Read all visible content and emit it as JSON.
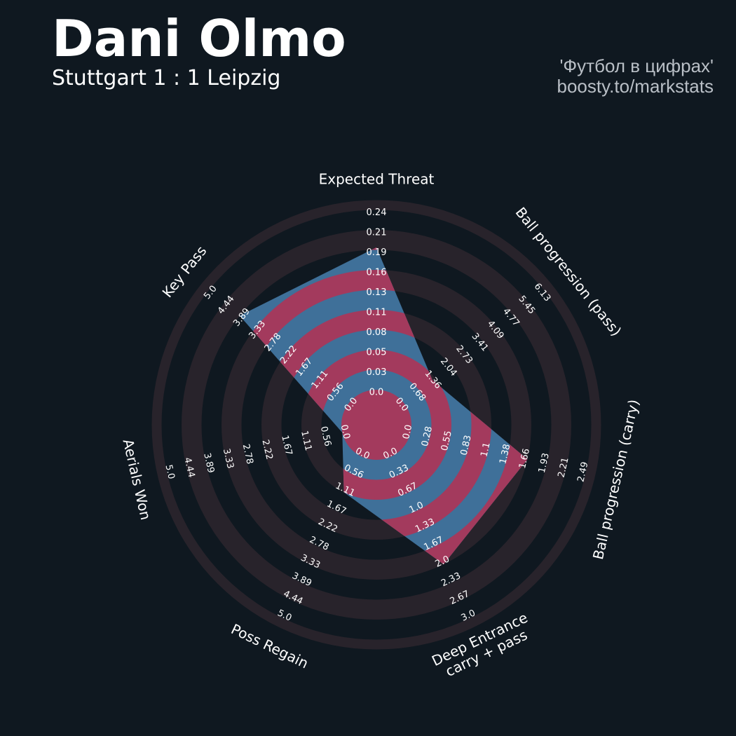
{
  "header": {
    "title": "Dani Olmo",
    "subtitle": "Stuttgart 1 : 1 Leipzig",
    "credit_line1": "'Футбол в цифрах'",
    "credit_line2": "boosty.to/markstats"
  },
  "colors": {
    "background": "#0f1820",
    "ring": "#28232b",
    "polygon_blue": "#3f7099",
    "polygon_red": "#a33a5d",
    "label": "#ffffff"
  },
  "chart_data": {
    "type": "radar",
    "title": "Dani Olmo",
    "axes": [
      {
        "name": "Expected Threat",
        "min": 0,
        "max": 0.24,
        "value": 0.19,
        "ticks": [
          "0.0",
          "0.03",
          "0.05",
          "0.08",
          "0.11",
          "0.13",
          "0.16",
          "0.19",
          "0.21",
          "0.24"
        ]
      },
      {
        "name": "Ball progression (pass)",
        "min": 0,
        "max": 6.13,
        "value": 1.25,
        "ticks": [
          "0.0",
          "0.68",
          "1.36",
          "2.04",
          "2.73",
          "3.41",
          "4.09",
          "4.77",
          "5.45",
          "6.13"
        ]
      },
      {
        "name": "Ball progression (carry)",
        "min": 0,
        "max": 2.49,
        "value": 1.66,
        "ticks": [
          "0.0",
          "0.28",
          "0.55",
          "0.83",
          "1.1",
          "1.38",
          "1.66",
          "1.93",
          "2.21",
          "2.49"
        ]
      },
      {
        "name": "Deep Entrance\ncarry + pass",
        "min": 0,
        "max": 3.0,
        "value": 2.0,
        "ticks": [
          "0.0",
          "0.33",
          "0.67",
          "1.0",
          "1.33",
          "1.67",
          "2.0",
          "2.33",
          "2.67",
          "3.0"
        ]
      },
      {
        "name": "Poss Regain",
        "min": 0,
        "max": 5.0,
        "value": 1.11,
        "ticks": [
          "0.0",
          "0.56",
          "1.11",
          "1.67",
          "2.22",
          "2.78",
          "3.33",
          "3.89",
          "4.44",
          "5.0"
        ]
      },
      {
        "name": "Aerials Won",
        "min": 0,
        "max": 5.0,
        "value": 0.0,
        "ticks": [
          "0.0",
          "0.56",
          "1.11",
          "1.67",
          "2.22",
          "2.78",
          "3.33",
          "3.89",
          "4.44",
          "5.0"
        ]
      },
      {
        "name": "Key Pass",
        "min": 0,
        "max": 5.0,
        "value": 3.89,
        "ticks": [
          "0.0",
          "0.56",
          "1.11",
          "1.67",
          "2.22",
          "2.78",
          "3.33",
          "3.89",
          "4.44",
          "5.0"
        ]
      }
    ]
  }
}
